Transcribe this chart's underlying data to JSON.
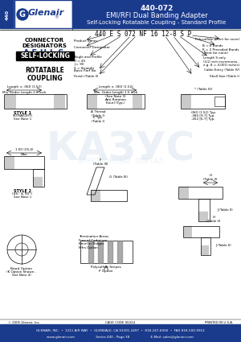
{
  "title_part": "440-072",
  "title_line1": "EMI/RFI Dual Banding Adapter",
  "title_line2": "Self-Locking Rotatable Coupling - Standard Profile",
  "header_bg_color": "#1a3a8c",
  "header_text_color": "#ffffff",
  "logo_text": "Glenair",
  "logo_bg": "#ffffff",
  "logo_border": "#1a3a8c",
  "side_label": "440",
  "side_bg": "#1a3a8c",
  "connector_title": "CONNECTOR\nDESIGNATORS",
  "connector_designators": "A-F-H-L-S",
  "self_locking": "SELF-LOCKING",
  "rotatable": "ROTATABLE\nCOUPLING",
  "part_number_str": "440 E S 072 NF 16 12-8 S P",
  "footer_line1": "GLENAIR, INC.  •  1211 AIR WAY  •  GLENDALE, CA 91201-2497  •  818-247-6000  •  FAX 818-500-9912",
  "footer_line2": "www.glenair.com                     Series 440 - Page 38                     E-Mail: sales@glenair.com",
  "footer_bg": "#1a3a8c",
  "footer_text_color": "#ffffff",
  "bg_color": "#ffffff",
  "watermark_text": "КАЗУС",
  "watermark_sub": "ЭЛЕКТРОННЫЙ  ПОРТАЛ",
  "copyright": "© 2005 Glenair, Inc.",
  "cage_code": "CAGE CODE 06324",
  "print_note": "PRINTED IN U.S.A."
}
